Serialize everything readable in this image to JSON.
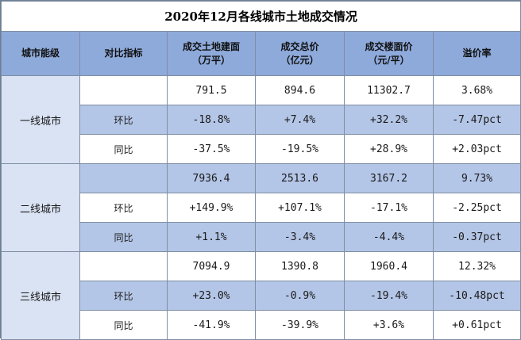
{
  "title": "2020年12月各线城市土地成交情况",
  "headers": {
    "tier": "城市能级",
    "indicator": "对比指标",
    "area_line1": "成交土地建面",
    "area_line2": "（万平）",
    "total_line1": "成交总价",
    "total_line2": "（亿元）",
    "price_line1": "成交楼面价",
    "price_line2": "（元/平）",
    "premium": "溢价率"
  },
  "groups": [
    {
      "tier": "一线城市",
      "rows": [
        {
          "indicator": "",
          "area": "791.5",
          "total": "894.6",
          "price": "11302.7",
          "premium": "3.68%"
        },
        {
          "indicator": "环比",
          "area": "-18.8%",
          "total": "+7.4%",
          "price": "+32.2%",
          "premium": "-7.47pct"
        },
        {
          "indicator": "同比",
          "area": "-37.5%",
          "total": "-19.5%",
          "price": "+28.9%",
          "premium": "+2.03pct"
        }
      ]
    },
    {
      "tier": "二线城市",
      "rows": [
        {
          "indicator": "",
          "area": "7936.4",
          "total": "2513.6",
          "price": "3167.2",
          "premium": "9.73%"
        },
        {
          "indicator": "环比",
          "area": "+149.9%",
          "total": "+107.1%",
          "price": "-17.1%",
          "premium": "-2.25pct"
        },
        {
          "indicator": "同比",
          "area": "+1.1%",
          "total": "-3.4%",
          "price": "-4.4%",
          "premium": "-0.37pct"
        }
      ]
    },
    {
      "tier": "三线城市",
      "rows": [
        {
          "indicator": "",
          "area": "7094.9",
          "total": "1390.8",
          "price": "1960.4",
          "premium": "12.32%"
        },
        {
          "indicator": "环比",
          "area": "+23.0%",
          "total": "-0.9%",
          "price": "-19.4%",
          "premium": "-10.48pct"
        },
        {
          "indicator": "同比",
          "area": "-41.9%",
          "total": "-39.9%",
          "price": "+3.6%",
          "premium": "+0.61pct"
        }
      ]
    }
  ],
  "colors": {
    "header_bg": "#8eaadb",
    "tier_bg": "#dae3f3",
    "band_bg": "#b4c6e7",
    "border": "#7e8ea3"
  }
}
